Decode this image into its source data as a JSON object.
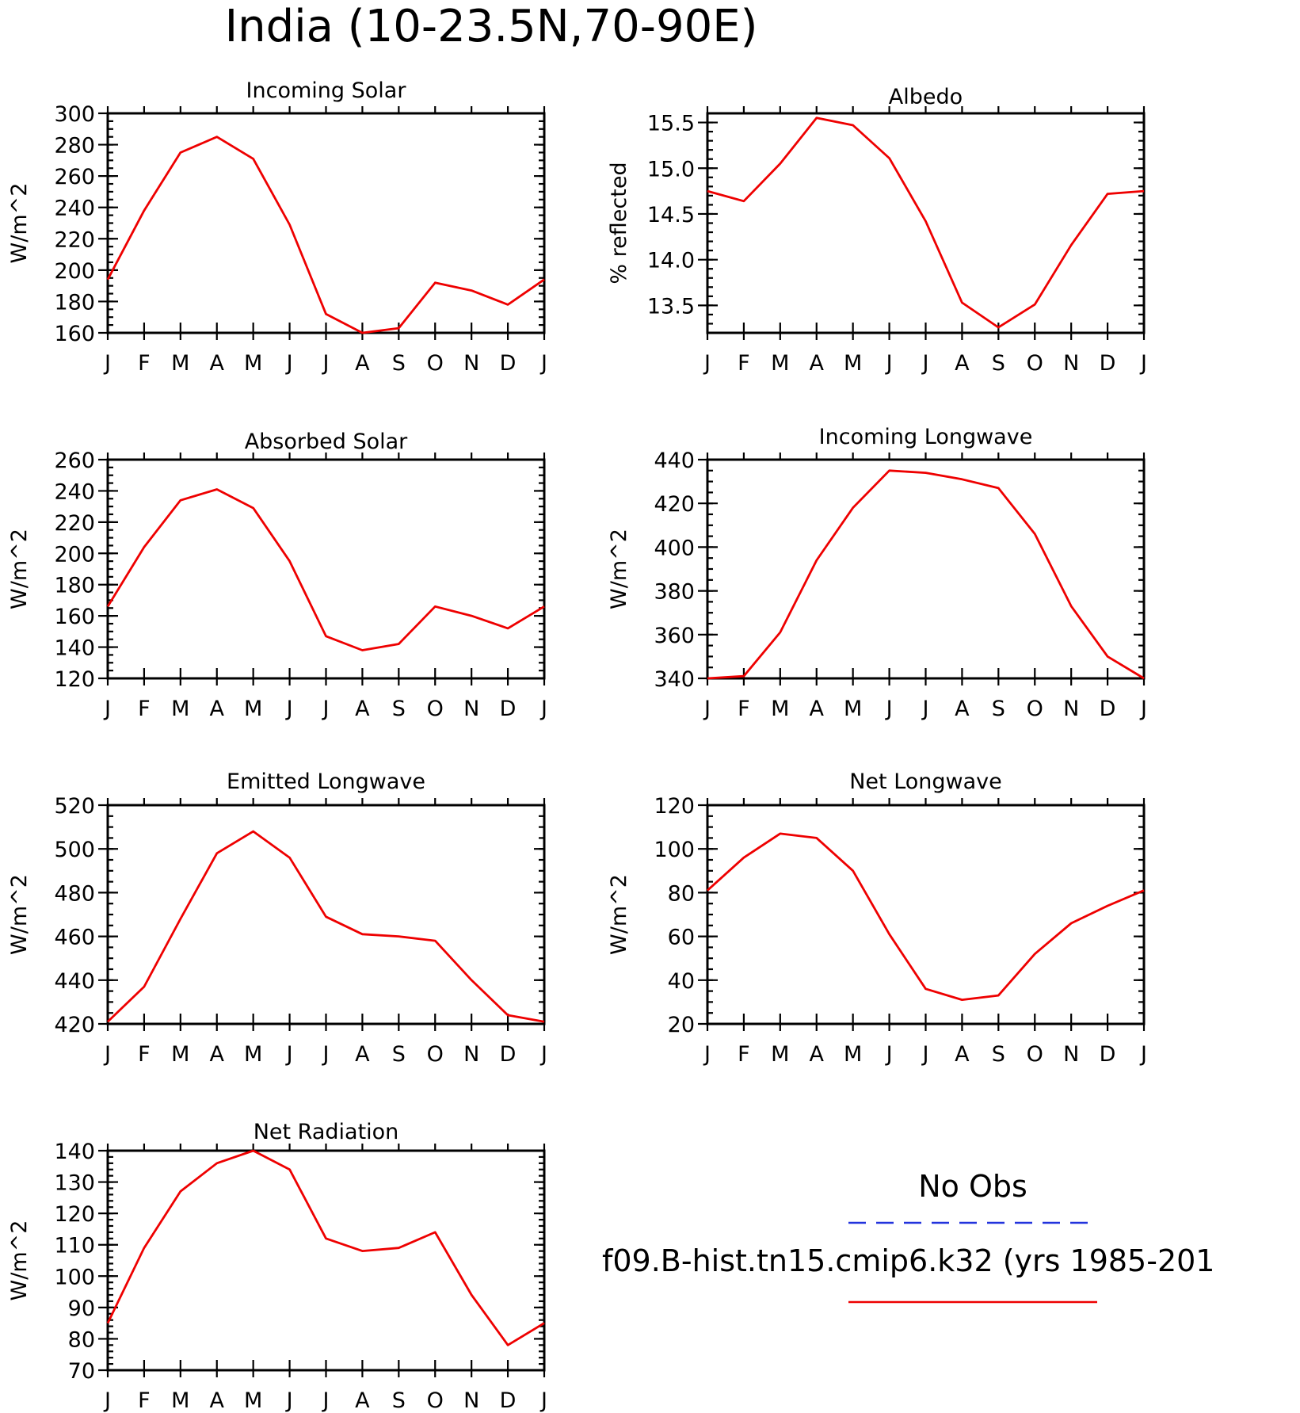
{
  "figure_title": "India (10-23.5N,70-90E)",
  "legend": {
    "entries": [
      {
        "label": "No Obs",
        "color": "#2233dd",
        "dash": "dashed"
      },
      {
        "label": "f09.B-hist.tn15.cmip6.k32 (yrs 1985-201",
        "color": "#ee0000",
        "dash": "solid"
      }
    ]
  },
  "chart_data": [
    {
      "type": "line",
      "title": "Incoming Solar",
      "ylabel": "W/m^2",
      "categories": [
        "J",
        "F",
        "M",
        "A",
        "M",
        "J",
        "J",
        "A",
        "S",
        "O",
        "N",
        "D",
        "J"
      ],
      "ylim": [
        160,
        300
      ],
      "yticks": [
        160,
        180,
        200,
        220,
        240,
        260,
        280,
        300
      ],
      "ytick_labels": [
        "160",
        "180",
        "200",
        "220",
        "240",
        "260",
        "280",
        "300"
      ],
      "minor_step": 5,
      "series": [
        {
          "color": "#ee0000",
          "values": [
            194,
            238,
            275,
            285,
            271,
            229,
            172,
            160,
            163,
            192,
            187,
            178,
            194
          ]
        }
      ]
    },
    {
      "type": "line",
      "title": "Albedo",
      "ylabel": "% reflected",
      "categories": [
        "J",
        "F",
        "M",
        "A",
        "M",
        "J",
        "J",
        "A",
        "S",
        "O",
        "N",
        "D",
        "J"
      ],
      "ylim": [
        13.2,
        15.6
      ],
      "yticks": [
        13.5,
        14.0,
        14.5,
        15.0,
        15.5
      ],
      "ytick_labels": [
        "13.5",
        "14.0",
        "14.5",
        "15.0",
        "15.5"
      ],
      "minor_step": 0.1,
      "series": [
        {
          "color": "#ee0000",
          "values": [
            14.75,
            14.64,
            15.05,
            15.55,
            15.47,
            15.11,
            14.42,
            13.53,
            13.26,
            13.51,
            14.16,
            14.72,
            14.75
          ]
        }
      ]
    },
    {
      "type": "line",
      "title": "Absorbed Solar",
      "ylabel": "W/m^2",
      "categories": [
        "J",
        "F",
        "M",
        "A",
        "M",
        "J",
        "J",
        "A",
        "S",
        "O",
        "N",
        "D",
        "J"
      ],
      "ylim": [
        120,
        260
      ],
      "yticks": [
        120,
        140,
        160,
        180,
        200,
        220,
        240,
        260
      ],
      "ytick_labels": [
        "120",
        "140",
        "160",
        "180",
        "200",
        "220",
        "240",
        "260"
      ],
      "minor_step": 5,
      "series": [
        {
          "color": "#ee0000",
          "values": [
            166,
            204,
            234,
            241,
            229,
            195,
            147,
            138,
            142,
            166,
            160,
            152,
            166
          ]
        }
      ]
    },
    {
      "type": "line",
      "title": "Incoming Longwave",
      "ylabel": "W/m^2",
      "categories": [
        "J",
        "F",
        "M",
        "A",
        "M",
        "J",
        "J",
        "A",
        "S",
        "O",
        "N",
        "D",
        "J"
      ],
      "ylim": [
        340,
        440
      ],
      "yticks": [
        340,
        360,
        380,
        400,
        420,
        440
      ],
      "ytick_labels": [
        "340",
        "360",
        "380",
        "400",
        "420",
        "440"
      ],
      "minor_step": 5,
      "series": [
        {
          "color": "#ee0000",
          "values": [
            340,
            341,
            361,
            394,
            418,
            435,
            434,
            431,
            427,
            406,
            373,
            350,
            340
          ]
        }
      ]
    },
    {
      "type": "line",
      "title": "Emitted Longwave",
      "ylabel": "W/m^2",
      "categories": [
        "J",
        "F",
        "M",
        "A",
        "M",
        "J",
        "J",
        "A",
        "S",
        "O",
        "N",
        "D",
        "J"
      ],
      "ylim": [
        420,
        520
      ],
      "yticks": [
        420,
        440,
        460,
        480,
        500,
        520
      ],
      "ytick_labels": [
        "420",
        "440",
        "460",
        "480",
        "500",
        "520"
      ],
      "minor_step": 5,
      "series": [
        {
          "color": "#ee0000",
          "values": [
            421,
            437,
            468,
            498,
            508,
            496,
            469,
            461,
            460,
            458,
            440,
            424,
            421
          ]
        }
      ]
    },
    {
      "type": "line",
      "title": "Net Longwave",
      "ylabel": "W/m^2",
      "categories": [
        "J",
        "F",
        "M",
        "A",
        "M",
        "J",
        "J",
        "A",
        "S",
        "O",
        "N",
        "D",
        "J"
      ],
      "ylim": [
        20,
        120
      ],
      "yticks": [
        20,
        40,
        60,
        80,
        100,
        120
      ],
      "ytick_labels": [
        "20",
        "40",
        "60",
        "80",
        "100",
        "120"
      ],
      "minor_step": 5,
      "series": [
        {
          "color": "#ee0000",
          "values": [
            81,
            96,
            107,
            105,
            90,
            61,
            36,
            31,
            33,
            52,
            66,
            74,
            81
          ]
        }
      ]
    },
    {
      "type": "line",
      "title": "Net Radiation",
      "ylabel": "W/m^2",
      "categories": [
        "J",
        "F",
        "M",
        "A",
        "M",
        "J",
        "J",
        "A",
        "S",
        "O",
        "N",
        "D",
        "J"
      ],
      "ylim": [
        70,
        140
      ],
      "yticks": [
        70,
        80,
        90,
        100,
        110,
        120,
        130,
        140
      ],
      "ytick_labels": [
        "70",
        "80",
        "90",
        "100",
        "110",
        "120",
        "130",
        "140"
      ],
      "minor_step": 2,
      "series": [
        {
          "color": "#ee0000",
          "values": [
            85,
            109,
            127,
            136,
            140,
            134,
            112,
            108,
            109,
            114,
            94,
            78,
            85
          ]
        }
      ]
    }
  ]
}
